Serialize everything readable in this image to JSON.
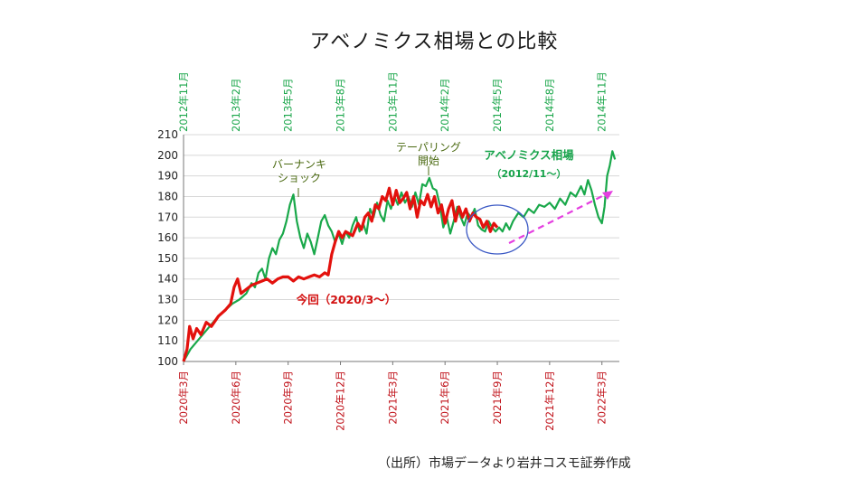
{
  "title": "アベノミクス相場との比較",
  "source": "（出所）市場データより岩井コスモ証券作成",
  "colors": {
    "current": "#e3110d",
    "abenomics": "#19a84a",
    "trend": "#e43fe0",
    "ellipse": "#3a58c4",
    "grid": "#d8d8d8"
  },
  "chart_data": {
    "type": "line",
    "title": "アベノミクス相場との比較",
    "ylim": [
      100,
      210
    ],
    "yticks": [
      100,
      110,
      120,
      130,
      140,
      150,
      160,
      170,
      180,
      190,
      200,
      210
    ],
    "xlim": [
      0,
      25
    ],
    "xticks_bottom": [
      {
        "x": 0,
        "label": "2020年3月"
      },
      {
        "x": 3,
        "label": "2020年6月"
      },
      {
        "x": 6,
        "label": "2020年9月"
      },
      {
        "x": 9,
        "label": "2020年12月"
      },
      {
        "x": 12,
        "label": "2021年3月"
      },
      {
        "x": 15,
        "label": "2021年6月"
      },
      {
        "x": 18,
        "label": "2021年9月"
      },
      {
        "x": 21,
        "label": "2021年12月"
      },
      {
        "x": 24,
        "label": "2022年3月"
      }
    ],
    "xticks_top": [
      {
        "x": 0,
        "label": "2012年11月"
      },
      {
        "x": 3,
        "label": "2013年2月"
      },
      {
        "x": 6,
        "label": "2013年5月"
      },
      {
        "x": 9,
        "label": "2013年8月"
      },
      {
        "x": 12,
        "label": "2013年11月"
      },
      {
        "x": 15,
        "label": "2014年2月"
      },
      {
        "x": 18,
        "label": "2014年5月"
      },
      {
        "x": 21,
        "label": "2014年8月"
      },
      {
        "x": 24,
        "label": "2014年11月"
      }
    ],
    "series": [
      {
        "name": "今回（2020/3～）",
        "x": [
          0,
          0.2,
          0.35,
          0.55,
          0.75,
          1.0,
          1.3,
          1.6,
          2.0,
          2.4,
          2.7,
          2.9,
          3.1,
          3.3,
          3.6,
          3.9,
          4.2,
          4.5,
          4.8,
          5.1,
          5.4,
          5.7,
          6.0,
          6.3,
          6.6,
          6.9,
          7.2,
          7.5,
          7.8,
          8.1,
          8.3,
          8.5,
          8.7,
          8.9,
          9.1,
          9.3,
          9.5,
          9.7,
          10.0,
          10.2,
          10.4,
          10.6,
          10.8,
          11.0,
          11.2,
          11.4,
          11.6,
          11.8,
          12.0,
          12.2,
          12.4,
          12.6,
          12.8,
          13.0,
          13.2,
          13.4,
          13.6,
          13.8,
          14.0,
          14.2,
          14.4,
          14.6,
          14.8,
          15.0,
          15.2,
          15.4,
          15.6,
          15.8,
          16.0,
          16.2,
          16.4,
          16.6,
          16.8,
          17.0,
          17.2,
          17.4,
          17.6,
          17.8,
          18.0
        ],
        "values": [
          100,
          106,
          117,
          111,
          116,
          113,
          119,
          117,
          122,
          125,
          128,
          136,
          140,
          133,
          135,
          137,
          138,
          139,
          140,
          138,
          140,
          141,
          141,
          139,
          141,
          140,
          141,
          142,
          141,
          143,
          142,
          152,
          158,
          163,
          160,
          163,
          162,
          161,
          167,
          164,
          170,
          172,
          168,
          176,
          174,
          180,
          178,
          184,
          176,
          183,
          177,
          179,
          182,
          174,
          180,
          170,
          178,
          176,
          181,
          175,
          180,
          172,
          176,
          167,
          174,
          178,
          168,
          175,
          170,
          174,
          168,
          172,
          170,
          169,
          165,
          168,
          163,
          167,
          165
        ]
      },
      {
        "name": "アベノミクス相場（2012/11～）",
        "x": [
          0,
          0.4,
          0.8,
          1.2,
          1.6,
          2.0,
          2.4,
          2.8,
          3.2,
          3.6,
          3.9,
          4.1,
          4.3,
          4.5,
          4.7,
          4.9,
          5.1,
          5.3,
          5.5,
          5.7,
          5.9,
          6.1,
          6.3,
          6.5,
          6.7,
          6.9,
          7.1,
          7.3,
          7.5,
          7.7,
          7.9,
          8.1,
          8.3,
          8.5,
          8.7,
          8.9,
          9.1,
          9.3,
          9.5,
          9.7,
          9.9,
          10.1,
          10.3,
          10.5,
          10.7,
          10.9,
          11.1,
          11.3,
          11.5,
          11.7,
          11.9,
          12.1,
          12.3,
          12.5,
          12.7,
          12.9,
          13.1,
          13.3,
          13.5,
          13.7,
          13.9,
          14.1,
          14.3,
          14.5,
          14.7,
          14.9,
          15.1,
          15.3,
          15.5,
          15.7,
          15.9,
          16.1,
          16.3,
          16.5,
          16.7,
          16.9,
          17.1,
          17.3,
          17.5,
          17.7,
          17.9,
          18.1,
          18.3,
          18.5,
          18.7,
          18.9,
          19.2,
          19.5,
          19.8,
          20.1,
          20.4,
          20.7,
          21.0,
          21.3,
          21.6,
          21.9,
          22.2,
          22.5,
          22.8,
          23.0,
          23.2,
          23.4,
          23.6,
          23.8,
          24.0,
          24.15,
          24.3,
          24.45,
          24.6,
          24.75
        ],
        "values": [
          100,
          106,
          110,
          114,
          118,
          122,
          125,
          128,
          130,
          133,
          138,
          136,
          143,
          145,
          140,
          150,
          155,
          152,
          159,
          162,
          168,
          176,
          181,
          168,
          160,
          155,
          162,
          158,
          152,
          160,
          168,
          171,
          166,
          163,
          158,
          162,
          157,
          163,
          160,
          166,
          170,
          163,
          167,
          162,
          174,
          170,
          177,
          171,
          168,
          178,
          174,
          180,
          176,
          182,
          177,
          180,
          175,
          182,
          176,
          186,
          185,
          189,
          184,
          183,
          176,
          165,
          170,
          162,
          168,
          175,
          170,
          166,
          172,
          170,
          174,
          166,
          164,
          163,
          168,
          165,
          163,
          165,
          163,
          167,
          164,
          168,
          172,
          170,
          174,
          172,
          176,
          175,
          177,
          174,
          179,
          176,
          182,
          180,
          185,
          181,
          188,
          183,
          176,
          170,
          167,
          175,
          190,
          195,
          202,
          198
        ]
      }
    ],
    "annotations": {
      "bernanke": [
        "バーナンキ",
        "ショック"
      ],
      "taper": [
        "テーパリング",
        "開始"
      ],
      "abenomics_label": "アベノミクス相場",
      "abenomics_sub": "（2012/11～）",
      "current_label": "今回（2020/3～）"
    }
  }
}
